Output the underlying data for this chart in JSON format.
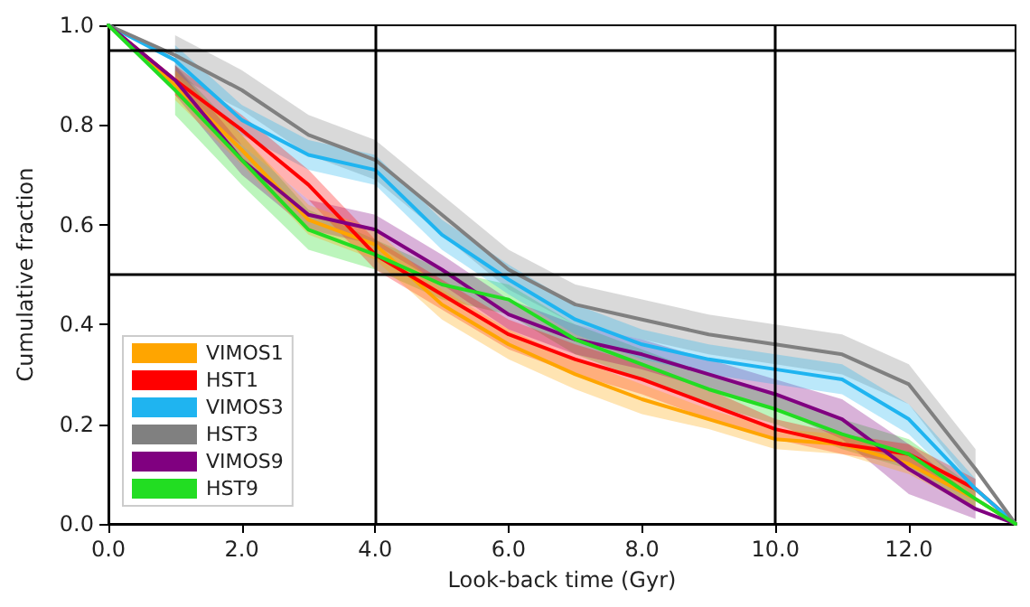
{
  "chart_data": {
    "type": "line",
    "xlabel": "Look-back time (Gyr)",
    "ylabel": "Cumulative fraction",
    "x": [
      0,
      1,
      2,
      3,
      4,
      5,
      6,
      7,
      8,
      9,
      10,
      11,
      12,
      13,
      13.6
    ],
    "xlim": [
      0,
      13.6
    ],
    "xticks": [
      {
        "value": 0,
        "label": "0.0"
      },
      {
        "value": 2,
        "label": "2.0"
      },
      {
        "value": 4,
        "label": "4.0"
      },
      {
        "value": 6,
        "label": "6.0"
      },
      {
        "value": 8,
        "label": "8.0"
      },
      {
        "value": 10,
        "label": "10.0"
      },
      {
        "value": 12,
        "label": "12.0"
      }
    ],
    "ylim": [
      0,
      1
    ],
    "yticks": [
      {
        "value": 0,
        "label": "0.0"
      },
      {
        "value": 0.2,
        "label": "0.2"
      },
      {
        "value": 0.4,
        "label": "0.4"
      },
      {
        "value": 0.6,
        "label": "0.6"
      },
      {
        "value": 0.8,
        "label": "0.8"
      },
      {
        "value": 1,
        "label": "1.0"
      }
    ],
    "marker": "none",
    "legend": "bottom left",
    "series": [
      {
        "name": "VIMOS1",
        "color": "#ffa500",
        "values": [
          1,
          0.88,
          0.75,
          0.61,
          0.56,
          0.44,
          0.36,
          0.3,
          0.25,
          0.21,
          0.17,
          0.16,
          0.12,
          0.05,
          0
        ],
        "lower": [
          null,
          0.85,
          0.72,
          0.58,
          0.53,
          0.41,
          0.33,
          0.27,
          0.22,
          0.19,
          0.15,
          0.14,
          0.1,
          0.03,
          null
        ],
        "upper": [
          null,
          0.91,
          0.78,
          0.64,
          0.59,
          0.47,
          0.39,
          0.33,
          0.28,
          0.23,
          0.19,
          0.18,
          0.14,
          0.07,
          null
        ]
      },
      {
        "name": "HST1",
        "color": "#ff0000",
        "values": [
          1,
          0.89,
          0.79,
          0.68,
          0.54,
          0.46,
          0.38,
          0.33,
          0.29,
          0.24,
          0.19,
          0.16,
          0.14,
          0.07,
          0
        ],
        "lower": [
          null,
          0.86,
          0.76,
          0.65,
          0.51,
          0.43,
          0.35,
          0.3,
          0.26,
          0.21,
          0.17,
          0.14,
          0.12,
          0.05,
          null
        ],
        "upper": [
          null,
          0.92,
          0.82,
          0.71,
          0.57,
          0.49,
          0.41,
          0.36,
          0.32,
          0.27,
          0.21,
          0.18,
          0.16,
          0.09,
          null
        ]
      },
      {
        "name": "VIMOS3",
        "color": "#1fb4f0",
        "values": [
          1,
          0.93,
          0.81,
          0.74,
          0.71,
          0.58,
          0.49,
          0.41,
          0.36,
          0.33,
          0.31,
          0.29,
          0.21,
          0.07,
          0
        ],
        "lower": [
          null,
          0.9,
          0.78,
          0.71,
          0.68,
          0.55,
          0.46,
          0.38,
          0.33,
          0.3,
          0.28,
          0.26,
          0.18,
          0.05,
          null
        ],
        "upper": [
          null,
          0.96,
          0.84,
          0.77,
          0.74,
          0.61,
          0.52,
          0.44,
          0.39,
          0.36,
          0.34,
          0.32,
          0.24,
          0.09,
          null
        ]
      },
      {
        "name": "HST3",
        "color": "#808080",
        "values": [
          1,
          0.94,
          0.87,
          0.78,
          0.73,
          0.62,
          0.51,
          0.44,
          0.41,
          0.38,
          0.36,
          0.34,
          0.28,
          0.11,
          0
        ],
        "lower": [
          null,
          0.9,
          0.83,
          0.74,
          0.69,
          0.58,
          0.47,
          0.4,
          0.37,
          0.34,
          0.32,
          0.3,
          0.24,
          0.07,
          null
        ],
        "upper": [
          null,
          0.98,
          0.91,
          0.82,
          0.77,
          0.66,
          0.55,
          0.48,
          0.45,
          0.42,
          0.4,
          0.38,
          0.32,
          0.15,
          null
        ]
      },
      {
        "name": "VIMOS9",
        "color": "#800080",
        "values": [
          1,
          0.89,
          0.73,
          0.62,
          0.59,
          0.51,
          0.42,
          0.37,
          0.34,
          0.3,
          0.26,
          0.21,
          0.11,
          0.03,
          0
        ],
        "lower": [
          null,
          0.86,
          0.7,
          0.59,
          0.56,
          0.48,
          0.39,
          0.34,
          0.31,
          0.27,
          0.23,
          0.17,
          0.06,
          0.01,
          null
        ],
        "upper": [
          null,
          0.92,
          0.76,
          0.65,
          0.62,
          0.54,
          0.45,
          0.4,
          0.37,
          0.33,
          0.29,
          0.25,
          0.16,
          0.05,
          null
        ]
      },
      {
        "name": "HST9",
        "color": "#22dd22",
        "values": [
          1,
          0.87,
          0.73,
          0.59,
          0.54,
          0.48,
          0.45,
          0.37,
          0.32,
          0.27,
          0.23,
          0.18,
          0.14,
          0.05,
          0
        ],
        "lower": [
          null,
          0.82,
          0.68,
          0.55,
          0.51,
          0.45,
          0.42,
          0.34,
          0.29,
          0.24,
          0.2,
          0.15,
          0.11,
          0.03,
          null
        ],
        "upper": [
          null,
          0.92,
          0.78,
          0.63,
          0.57,
          0.51,
          0.48,
          0.4,
          0.35,
          0.3,
          0.26,
          0.21,
          0.17,
          0.07,
          null
        ]
      }
    ],
    "ref_lines": [
      {
        "axis": "y",
        "value": 0.95,
        "color": "#000000"
      },
      {
        "axis": "y",
        "value": 0.5,
        "color": "#000000"
      },
      {
        "axis": "x",
        "value": 4,
        "color": "#000000"
      },
      {
        "axis": "x",
        "value": 10,
        "color": "#000000"
      }
    ]
  }
}
